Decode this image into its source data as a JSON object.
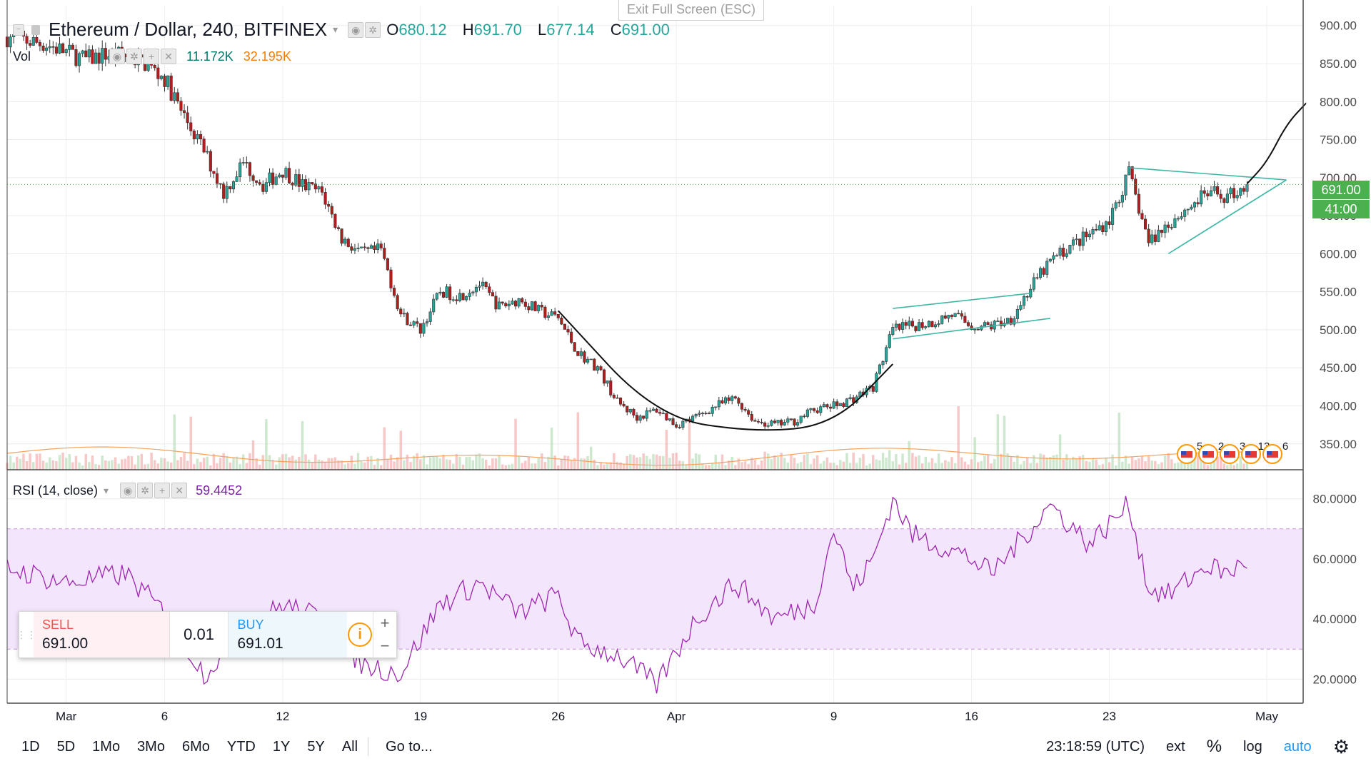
{
  "header": {
    "title": "Ethereum / Dollar, 240, BITFINEX",
    "ohlc": [
      {
        "key": "O",
        "value": "680.12"
      },
      {
        "key": "H",
        "value": "691.70"
      },
      {
        "key": "L",
        "value": "677.14"
      },
      {
        "key": "C",
        "value": "691.00"
      }
    ],
    "exit_fullscreen": "Exit Full Screen (ESC)"
  },
  "volume_legend": {
    "label": "Vol",
    "value_a": "11.172K",
    "value_b": "32.195K"
  },
  "rsi_legend": {
    "label": "RSI (14, close)",
    "value": "59.4452"
  },
  "price_axis": {
    "ticks": [
      "900.00",
      "850.00",
      "800.00",
      "750.00",
      "700.00",
      "650.00",
      "600.00",
      "550.00",
      "500.00",
      "450.00",
      "400.00",
      "350.00"
    ],
    "last_price": "691.00",
    "countdown": "41:00"
  },
  "rsi_axis": {
    "ticks": [
      "80.0000",
      "60.0000",
      "40.0000",
      "20.0000"
    ]
  },
  "time_axis": {
    "ticks": [
      "Mar",
      "6",
      "12",
      "19",
      "26",
      "Apr",
      "9",
      "16",
      "23",
      "May"
    ]
  },
  "event_markers": [
    "5",
    "2",
    "3",
    "13",
    "6"
  ],
  "trade_panel": {
    "sell_label": "SELL",
    "sell_price": "691.00",
    "quantity": "0.01",
    "buy_label": "BUY",
    "buy_price": "691.01",
    "plus": "+",
    "minus": "−",
    "info": "i"
  },
  "bottom_bar": {
    "timeframes": [
      "1D",
      "5D",
      "1Mo",
      "3Mo",
      "6Mo",
      "YTD",
      "1Y",
      "5Y",
      "All"
    ],
    "goto": "Go to...",
    "clock": "23:18:59 (UTC)",
    "options": [
      "ext",
      "%",
      "log",
      "auto"
    ]
  },
  "colors": {
    "up": "#26a69a",
    "down": "#b71c1c",
    "rsi": "#9c27b0",
    "volume_ma": "#f5a25d",
    "pattern": "#3fb7a5"
  },
  "chart_data": {
    "type": "candlestick",
    "symbol": "Ethereum / Dollar",
    "interval": "240",
    "exchange": "BITFINEX",
    "y_range": [
      350,
      900
    ],
    "rsi_range": [
      15,
      85
    ],
    "rsi_band": [
      30,
      70
    ],
    "date_range": [
      "2018-02-26",
      "2018-05-02"
    ],
    "price_path": [
      [
        "2018-02-26",
        885
      ],
      [
        "2018-02-28",
        875
      ],
      [
        "2018-03-01",
        865
      ],
      [
        "2018-03-02",
        855
      ],
      [
        "2018-03-03",
        862
      ],
      [
        "2018-03-04",
        860
      ],
      [
        "2018-03-05",
        850
      ],
      [
        "2018-03-06",
        830
      ],
      [
        "2018-03-07",
        780
      ],
      [
        "2018-03-08",
        735
      ],
      [
        "2018-03-09",
        680
      ],
      [
        "2018-03-10",
        720
      ],
      [
        "2018-03-11",
        690
      ],
      [
        "2018-03-12",
        710
      ],
      [
        "2018-03-13",
        690
      ],
      [
        "2018-03-14",
        680
      ],
      [
        "2018-03-15",
        620
      ],
      [
        "2018-03-16",
        600
      ],
      [
        "2018-03-17",
        605
      ],
      [
        "2018-03-18",
        520
      ],
      [
        "2018-03-19",
        500
      ],
      [
        "2018-03-20",
        550
      ],
      [
        "2018-03-21",
        545
      ],
      [
        "2018-03-22",
        560
      ],
      [
        "2018-03-23",
        530
      ],
      [
        "2018-03-24",
        540
      ],
      [
        "2018-03-25",
        525
      ],
      [
        "2018-03-26",
        515
      ],
      [
        "2018-03-27",
        470
      ],
      [
        "2018-03-28",
        450
      ],
      [
        "2018-03-29",
        405
      ],
      [
        "2018-03-30",
        385
      ],
      [
        "2018-03-31",
        395
      ],
      [
        "2018-04-01",
        375
      ],
      [
        "2018-04-02",
        385
      ],
      [
        "2018-04-03",
        400
      ],
      [
        "2018-04-04",
        410
      ],
      [
        "2018-04-05",
        380
      ],
      [
        "2018-04-06",
        375
      ],
      [
        "2018-04-07",
        380
      ],
      [
        "2018-04-08",
        395
      ],
      [
        "2018-04-09",
        400
      ],
      [
        "2018-04-10",
        410
      ],
      [
        "2018-04-11",
        425
      ],
      [
        "2018-04-12",
        500
      ],
      [
        "2018-04-13",
        505
      ],
      [
        "2018-04-14",
        510
      ],
      [
        "2018-04-15",
        520
      ],
      [
        "2018-04-16",
        505
      ],
      [
        "2018-04-17",
        505
      ],
      [
        "2018-04-18",
        515
      ],
      [
        "2018-04-19",
        555
      ],
      [
        "2018-04-20",
        590
      ],
      [
        "2018-04-21",
        610
      ],
      [
        "2018-04-22",
        625
      ],
      [
        "2018-04-23",
        645
      ],
      [
        "2018-04-24",
        705
      ],
      [
        "2018-04-25",
        615
      ],
      [
        "2018-04-26",
        640
      ],
      [
        "2018-04-27",
        660
      ],
      [
        "2018-04-28",
        680
      ],
      [
        "2018-04-29",
        675
      ],
      [
        "2018-04-30",
        691
      ]
    ],
    "rsi_path": [
      [
        "2018-02-26",
        57
      ],
      [
        "2018-03-01",
        52
      ],
      [
        "2018-03-04",
        55
      ],
      [
        "2018-03-06",
        42
      ],
      [
        "2018-03-08",
        22
      ],
      [
        "2018-03-10",
        35
      ],
      [
        "2018-03-12",
        45
      ],
      [
        "2018-03-14",
        40
      ],
      [
        "2018-03-16",
        25
      ],
      [
        "2018-03-18",
        22
      ],
      [
        "2018-03-20",
        45
      ],
      [
        "2018-03-22",
        52
      ],
      [
        "2018-03-24",
        42
      ],
      [
        "2018-03-26",
        48
      ],
      [
        "2018-03-27",
        32
      ],
      [
        "2018-03-29",
        28
      ],
      [
        "2018-03-31",
        18
      ],
      [
        "2018-04-02",
        40
      ],
      [
        "2018-04-04",
        52
      ],
      [
        "2018-04-06",
        40
      ],
      [
        "2018-04-08",
        45
      ],
      [
        "2018-04-09",
        70
      ],
      [
        "2018-04-10",
        50
      ],
      [
        "2018-04-11",
        60
      ],
      [
        "2018-04-12",
        80
      ],
      [
        "2018-04-13",
        68
      ],
      [
        "2018-04-15",
        63
      ],
      [
        "2018-04-16",
        60
      ],
      [
        "2018-04-17",
        55
      ],
      [
        "2018-04-19",
        70
      ],
      [
        "2018-04-20",
        78
      ],
      [
        "2018-04-22",
        65
      ],
      [
        "2018-04-24",
        78
      ],
      [
        "2018-04-25",
        50
      ],
      [
        "2018-04-26",
        48
      ],
      [
        "2018-04-28",
        58
      ],
      [
        "2018-04-29",
        55
      ],
      [
        "2018-04-30",
        59.4452
      ]
    ],
    "annotations": [
      {
        "type": "rounded-bottom-curve",
        "points": [
          [
            "2018-03-26",
            525
          ],
          [
            "2018-03-31",
            385
          ],
          [
            "2018-04-05",
            365
          ],
          [
            "2018-04-09",
            375
          ],
          [
            "2018-04-12",
            455
          ]
        ]
      },
      {
        "type": "channel-line",
        "points": [
          [
            "2018-04-12",
            528
          ],
          [
            "2018-04-19",
            548
          ]
        ]
      },
      {
        "type": "channel-line",
        "points": [
          [
            "2018-04-12",
            488
          ],
          [
            "2018-04-20",
            515
          ]
        ]
      },
      {
        "type": "triangle-line",
        "points": [
          [
            "2018-04-24",
            713
          ],
          [
            "2018-05-02",
            697
          ]
        ]
      },
      {
        "type": "triangle-line",
        "points": [
          [
            "2018-04-26",
            600
          ],
          [
            "2018-05-02",
            697
          ]
        ]
      },
      {
        "type": "projection-curve",
        "points": [
          [
            "2018-04-30",
            692
          ],
          [
            "2018-05-01",
            720
          ],
          [
            "2018-05-02",
            770
          ],
          [
            "2018-05-03",
            798
          ]
        ]
      }
    ]
  }
}
